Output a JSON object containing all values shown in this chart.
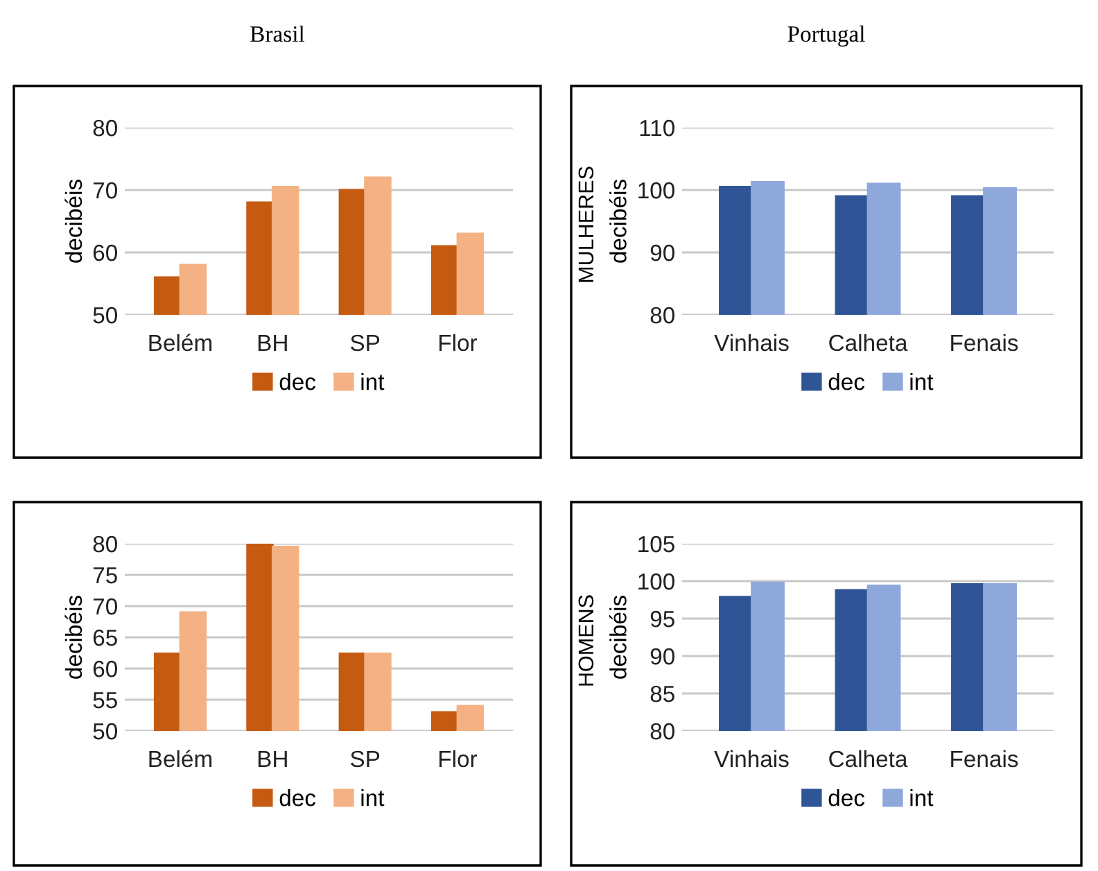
{
  "chart_data": [
    {
      "type": "bar",
      "title": "Brasil",
      "ylabel": "decibéis",
      "categories": [
        "Belém",
        "BH",
        "SP",
        "Flor"
      ],
      "series": [
        {
          "name": "dec",
          "color": "#c55a11",
          "values": [
            56,
            68,
            70,
            61
          ]
        },
        {
          "name": "int",
          "color": "#f4b183",
          "values": [
            58,
            70.5,
            72,
            63
          ]
        }
      ],
      "ylim": [
        50,
        80
      ],
      "yticks": [
        50,
        60,
        70,
        80
      ],
      "grid": "y",
      "legend": "bottom"
    },
    {
      "type": "bar",
      "title": "Portugal",
      "ylabel": "decibéis",
      "annotations": [
        "MULHERES"
      ],
      "categories": [
        "Vinhais",
        "Calheta",
        "Fenais"
      ],
      "series": [
        {
          "name": "dec",
          "color": "#2f5597",
          "values": [
            100.5,
            99,
            99
          ]
        },
        {
          "name": "int",
          "color": "#8fa8dc",
          "values": [
            101.3,
            101,
            100.3
          ]
        }
      ],
      "ylim": [
        80,
        110
      ],
      "yticks": [
        80,
        90,
        100,
        110
      ],
      "grid": "y",
      "legend": "bottom"
    },
    {
      "type": "bar",
      "ylabel": "decibéis",
      "categories": [
        "Belém",
        "BH",
        "SP",
        "Flor"
      ],
      "series": [
        {
          "name": "dec",
          "color": "#c55a11",
          "values": [
            62.4,
            80,
            62.4,
            53
          ]
        },
        {
          "name": "int",
          "color": "#f4b183",
          "values": [
            69,
            79.5,
            62.4,
            54
          ]
        }
      ],
      "ylim": [
        50,
        80
      ],
      "yticks": [
        50,
        55,
        60,
        65,
        70,
        75,
        80
      ],
      "grid": "y",
      "legend": "bottom"
    },
    {
      "type": "bar",
      "ylabel": "decibéis",
      "annotations": [
        "HOMENS"
      ],
      "categories": [
        "Vinhais",
        "Calheta",
        "Fenais"
      ],
      "series": [
        {
          "name": "dec",
          "color": "#2f5597",
          "values": [
            97.9,
            98.8,
            99.6
          ]
        },
        {
          "name": "int",
          "color": "#8fa8dc",
          "values": [
            99.8,
            99.4,
            99.6
          ]
        }
      ],
      "ylim": [
        80,
        105
      ],
      "yticks": [
        80,
        85,
        90,
        95,
        100,
        105
      ],
      "grid": "y",
      "legend": "bottom"
    }
  ]
}
